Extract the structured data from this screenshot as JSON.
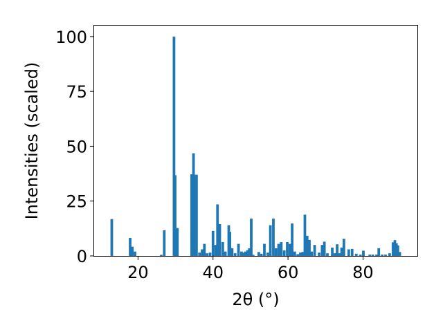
{
  "chart_data": {
    "type": "bar",
    "xlabel": "2θ (°)",
    "ylabel": "Intensities (scaled)",
    "xlim": [
      8.3,
      94.5
    ],
    "ylim": [
      0,
      105
    ],
    "xticks": [
      20,
      40,
      60,
      80
    ],
    "yticks": [
      0,
      25,
      50,
      75,
      100
    ],
    "bar_color": "#1f77b4",
    "bar_width_deg": 0.7,
    "x": [
      13.0,
      17.9,
      18.5,
      19.2,
      26.2,
      27.0,
      29.6,
      29.9,
      30.5,
      34.3,
      34.8,
      35.3,
      35.6,
      36.4,
      37.1,
      37.7,
      38.4,
      39.2,
      40.0,
      40.7,
      41.2,
      41.8,
      42.6,
      43.3,
      44.2,
      44.5,
      45.1,
      45.9,
      46.8,
      47.6,
      48.2,
      48.7,
      49.2,
      49.7,
      50.2,
      50.7,
      52.2,
      52.9,
      53.7,
      54.6,
      55.3,
      56.1,
      56.8,
      57.5,
      58.2,
      59.0,
      59.8,
      60.5,
      61.1,
      61.8,
      62.6,
      63.3,
      63.9,
      64.5,
      65.1,
      65.7,
      66.3,
      67.1,
      68.3,
      69.1,
      69.7,
      70.5,
      71.8,
      72.5,
      73.1,
      73.8,
      74.3,
      74.9,
      76.2,
      77.1,
      78.2,
      79.3,
      80.1,
      81.8,
      82.6,
      83.6,
      84.2,
      85.1,
      86.0,
      87.1,
      88.0,
      88.5,
      88.9,
      89.3,
      89.8
    ],
    "values": [
      16.8,
      8.2,
      4.2,
      2.0,
      0.5,
      11.7,
      100.0,
      36.8,
      12.7,
      37.2,
      46.8,
      37.0,
      37.0,
      1.5,
      3.0,
      5.5,
      1.2,
      1.5,
      11.4,
      5.0,
      23.5,
      14.5,
      6.3,
      2.0,
      14.0,
      11.0,
      3.5,
      1.2,
      5.5,
      2.0,
      1.5,
      2.0,
      2.6,
      3.5,
      17.0,
      0.5,
      1.8,
      1.0,
      5.5,
      1.5,
      14.0,
      17.0,
      3.5,
      5.5,
      6.3,
      2.5,
      6.3,
      5.5,
      14.8,
      2.0,
      0.8,
      1.5,
      1.8,
      18.8,
      9.2,
      7.3,
      2.0,
      5.0,
      1.5,
      5.0,
      6.5,
      1.2,
      3.8,
      1.2,
      5.3,
      1.2,
      3.8,
      7.8,
      3.0,
      3.2,
      1.0,
      0.6,
      2.4,
      0.6,
      0.6,
      0.6,
      3.5,
      0.6,
      0.6,
      1.2,
      6.2,
      7.2,
      5.8,
      4.8,
      1.8
    ]
  }
}
